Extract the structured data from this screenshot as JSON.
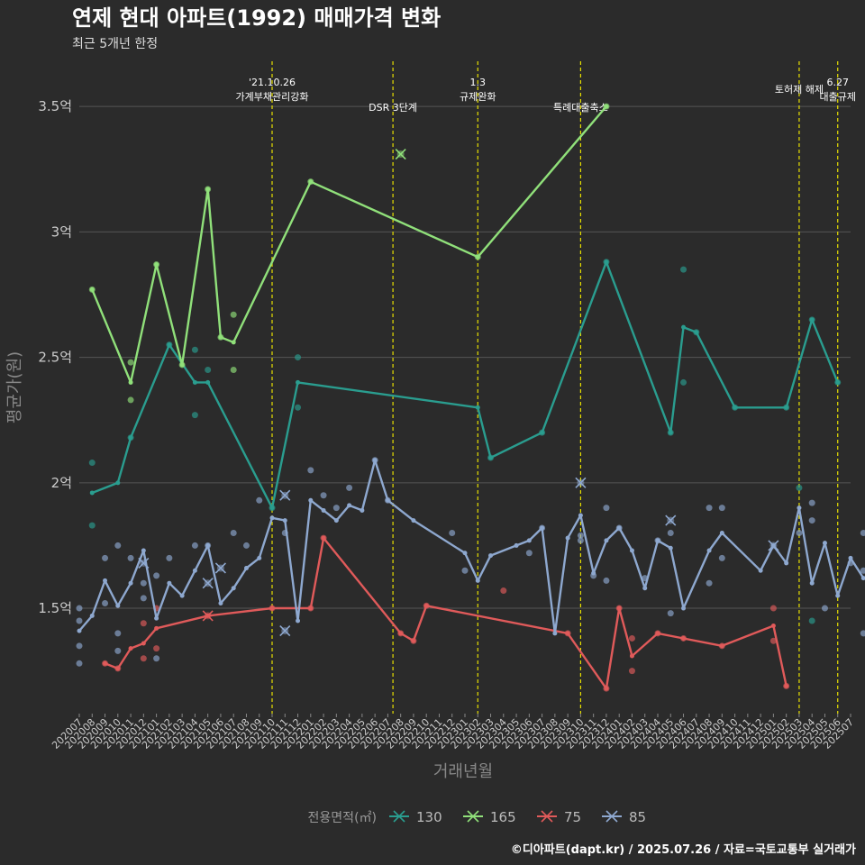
{
  "chart_data": {
    "type": "line",
    "title": "연제 현대 아파트(1992) 매매가격 변화",
    "subtitle": "최근 5개년 한정",
    "xlabel": "거래년월",
    "ylabel": "평균가(원)",
    "caption": "©디아파트(dapt.kr) / 2025.07.26 / 자료=국토교통부 실거래가",
    "y_ticks": [
      {
        "value": 1.5,
        "label": "1.5억"
      },
      {
        "value": 2.0,
        "label": "2억"
      },
      {
        "value": 2.5,
        "label": "2.5억"
      },
      {
        "value": 3.0,
        "label": "3억"
      },
      {
        "value": 3.5,
        "label": "3.5억"
      }
    ],
    "ylim": [
      1.08,
      3.68
    ],
    "categories": [
      "202007",
      "202008",
      "202009",
      "202010",
      "202011",
      "202012",
      "202101",
      "202102",
      "202103",
      "202104",
      "202105",
      "202106",
      "202107",
      "202108",
      "202109",
      "202110",
      "202111",
      "202112",
      "202201",
      "202202",
      "202203",
      "202204",
      "202205",
      "202206",
      "202207",
      "202208",
      "202209",
      "202210",
      "202211",
      "202212",
      "202301",
      "202302",
      "202303",
      "202304",
      "202305",
      "202306",
      "202307",
      "202308",
      "202309",
      "202310",
      "202311",
      "202312",
      "202401",
      "202402",
      "202403",
      "202404",
      "202405",
      "202406",
      "202407",
      "202408",
      "202409",
      "202410",
      "202411",
      "202412",
      "202501",
      "202502",
      "202503",
      "202504",
      "202505",
      "202506",
      "202507"
    ],
    "annotations": [
      {
        "x": 7.5,
        "lines": [
          "'21.10.26",
          "가계부채관리강화"
        ]
      },
      {
        "x": 12.2,
        "lines": [
          "DSR 3단계"
        ]
      },
      {
        "x": 15.5,
        "lines": [
          "1.3",
          "규제완화"
        ]
      },
      {
        "x": 19.5,
        "lines": [
          "특례대출축소"
        ]
      },
      {
        "x": 28.0,
        "lines": [
          "토허제 해제"
        ]
      },
      {
        "x": 29.5,
        "lines": [
          "6.27",
          "대출규제"
        ]
      }
    ],
    "legend": {
      "title": "전용면적(㎡)",
      "position": "bottom",
      "items": [
        {
          "name": "130",
          "color": "#2a9d8f"
        },
        {
          "name": "165",
          "color": "#90e07a"
        },
        {
          "name": "75",
          "color": "#e05a5a"
        },
        {
          "name": "85",
          "color": "#8ea8cf"
        }
      ]
    },
    "series": [
      {
        "name": "130",
        "color": "#2a9d8f",
        "line": [
          [
            0.5,
            1.96
          ],
          [
            1.5,
            2.0
          ],
          [
            2.0,
            2.18
          ],
          [
            3.5,
            2.55
          ],
          [
            4.5,
            2.4
          ],
          [
            5.0,
            2.4
          ],
          [
            7.5,
            1.9
          ],
          [
            8.5,
            2.4
          ],
          [
            15.5,
            2.3
          ],
          [
            16.0,
            2.1
          ],
          [
            18.0,
            2.2
          ],
          [
            20.5,
            2.88
          ],
          [
            23.0,
            2.2
          ],
          [
            23.5,
            2.62
          ],
          [
            24.0,
            2.6
          ],
          [
            25.5,
            2.3
          ],
          [
            27.5,
            2.3
          ],
          [
            28.5,
            2.65
          ],
          [
            29.5,
            2.4
          ]
        ],
        "points": [
          [
            0.5,
            2.08
          ],
          [
            0.5,
            1.83
          ],
          [
            2.0,
            2.18
          ],
          [
            3.5,
            2.55
          ],
          [
            4.5,
            2.53
          ],
          [
            4.5,
            2.27
          ],
          [
            5.0,
            2.45
          ],
          [
            7.5,
            1.9
          ],
          [
            8.5,
            2.5
          ],
          [
            8.5,
            2.3
          ],
          [
            16.0,
            2.1
          ],
          [
            18.0,
            2.2
          ],
          [
            20.5,
            2.88
          ],
          [
            23.0,
            2.2
          ],
          [
            23.5,
            2.4
          ],
          [
            23.5,
            2.85
          ],
          [
            24.0,
            2.6
          ],
          [
            25.5,
            2.3
          ],
          [
            27.5,
            2.3
          ],
          [
            28.0,
            1.98
          ],
          [
            28.5,
            2.65
          ],
          [
            28.5,
            1.45
          ],
          [
            29.5,
            2.4
          ]
        ],
        "crosses": []
      },
      {
        "name": "165",
        "color": "#90e07a",
        "line": [
          [
            0.5,
            2.77
          ],
          [
            2.0,
            2.4
          ],
          [
            3.0,
            2.87
          ],
          [
            4.0,
            2.47
          ],
          [
            5.0,
            3.17
          ],
          [
            5.5,
            2.58
          ],
          [
            6.0,
            2.56
          ],
          [
            9.0,
            3.2
          ],
          [
            15.5,
            2.9
          ],
          [
            20.5,
            3.5
          ]
        ],
        "points": [
          [
            0.5,
            2.77
          ],
          [
            2.0,
            2.48
          ],
          [
            2.0,
            2.33
          ],
          [
            3.0,
            2.87
          ],
          [
            4.0,
            2.47
          ],
          [
            5.0,
            3.17
          ],
          [
            5.5,
            2.58
          ],
          [
            6.0,
            2.45
          ],
          [
            6.0,
            2.67
          ],
          [
            9.0,
            3.2
          ],
          [
            15.5,
            2.9
          ],
          [
            20.5,
            3.5
          ]
        ],
        "crosses": [
          [
            12.5,
            3.31
          ]
        ]
      },
      {
        "name": "75",
        "color": "#e05a5a",
        "line": [
          [
            1.0,
            1.28
          ],
          [
            1.5,
            1.26
          ],
          [
            2.0,
            1.34
          ],
          [
            2.5,
            1.36
          ],
          [
            3.0,
            1.42
          ],
          [
            5.0,
            1.47
          ],
          [
            7.5,
            1.5
          ],
          [
            9.0,
            1.5
          ],
          [
            9.5,
            1.78
          ],
          [
            12.5,
            1.4
          ],
          [
            13.0,
            1.37
          ],
          [
            13.5,
            1.51
          ],
          [
            19.0,
            1.4
          ],
          [
            20.5,
            1.18
          ],
          [
            21.0,
            1.5
          ],
          [
            21.5,
            1.31
          ],
          [
            22.5,
            1.4
          ],
          [
            23.5,
            1.38
          ],
          [
            25.0,
            1.35
          ],
          [
            27.0,
            1.43
          ],
          [
            27.5,
            1.19
          ]
        ],
        "points": [
          [
            1.0,
            1.28
          ],
          [
            1.5,
            1.26
          ],
          [
            2.5,
            1.44
          ],
          [
            2.5,
            1.3
          ],
          [
            3.0,
            1.5
          ],
          [
            3.0,
            1.34
          ],
          [
            7.5,
            1.5
          ],
          [
            9.0,
            1.5
          ],
          [
            9.5,
            1.78
          ],
          [
            12.5,
            1.4
          ],
          [
            13.0,
            1.37
          ],
          [
            13.5,
            1.51
          ],
          [
            16.5,
            1.57
          ],
          [
            19.0,
            1.4
          ],
          [
            20.5,
            1.18
          ],
          [
            21.0,
            1.5
          ],
          [
            21.5,
            1.38
          ],
          [
            21.5,
            1.25
          ],
          [
            22.5,
            1.4
          ],
          [
            23.5,
            1.38
          ],
          [
            25.0,
            1.35
          ],
          [
            27.0,
            1.5
          ],
          [
            27.0,
            1.37
          ],
          [
            27.5,
            1.19
          ]
        ],
        "crosses": [
          [
            5.0,
            1.47
          ]
        ]
      },
      {
        "name": "85",
        "color": "#8ea8cf",
        "line": [
          [
            0.0,
            1.41
          ],
          [
            0.5,
            1.47
          ],
          [
            1.0,
            1.61
          ],
          [
            1.5,
            1.51
          ],
          [
            2.0,
            1.6
          ],
          [
            2.5,
            1.73
          ],
          [
            3.0,
            1.46
          ],
          [
            3.5,
            1.6
          ],
          [
            4.0,
            1.55
          ],
          [
            4.5,
            1.65
          ],
          [
            5.0,
            1.75
          ],
          [
            5.5,
            1.52
          ],
          [
            6.0,
            1.58
          ],
          [
            6.5,
            1.66
          ],
          [
            7.0,
            1.7
          ],
          [
            7.5,
            1.86
          ],
          [
            8.0,
            1.85
          ],
          [
            8.5,
            1.45
          ],
          [
            9.0,
            1.93
          ],
          [
            9.5,
            1.89
          ],
          [
            10.0,
            1.85
          ],
          [
            10.5,
            1.91
          ],
          [
            11.0,
            1.89
          ],
          [
            11.5,
            2.09
          ],
          [
            12.0,
            1.93
          ],
          [
            13.0,
            1.85
          ],
          [
            15.0,
            1.72
          ],
          [
            15.5,
            1.61
          ],
          [
            16.0,
            1.71
          ],
          [
            17.0,
            1.75
          ],
          [
            17.5,
            1.77
          ],
          [
            18.0,
            1.82
          ],
          [
            18.5,
            1.4
          ],
          [
            19.0,
            1.78
          ],
          [
            19.5,
            1.87
          ],
          [
            20.0,
            1.64
          ],
          [
            20.5,
            1.77
          ],
          [
            21.0,
            1.82
          ],
          [
            21.5,
            1.73
          ],
          [
            22.0,
            1.58
          ],
          [
            22.5,
            1.77
          ],
          [
            23.0,
            1.74
          ],
          [
            23.5,
            1.5
          ],
          [
            24.5,
            1.73
          ],
          [
            25.0,
            1.8
          ],
          [
            26.5,
            1.65
          ],
          [
            27.0,
            1.75
          ],
          [
            27.5,
            1.68
          ],
          [
            28.0,
            1.9
          ],
          [
            28.5,
            1.6
          ],
          [
            29.0,
            1.76
          ],
          [
            29.5,
            1.55
          ],
          [
            30.0,
            1.7
          ],
          [
            30.5,
            1.62
          ]
        ],
        "points": [
          [
            0.0,
            1.5
          ],
          [
            0.0,
            1.45
          ],
          [
            0.0,
            1.35
          ],
          [
            0.0,
            1.28
          ],
          [
            1.0,
            1.7
          ],
          [
            1.0,
            1.52
          ],
          [
            1.5,
            1.75
          ],
          [
            1.5,
            1.4
          ],
          [
            1.5,
            1.33
          ],
          [
            2.0,
            1.7
          ],
          [
            2.5,
            1.6
          ],
          [
            2.5,
            1.54
          ],
          [
            3.0,
            1.63
          ],
          [
            3.0,
            1.3
          ],
          [
            3.5,
            1.7
          ],
          [
            4.5,
            1.75
          ],
          [
            5.0,
            1.75
          ],
          [
            6.0,
            1.8
          ],
          [
            6.5,
            1.75
          ],
          [
            7.0,
            1.93
          ],
          [
            8.0,
            1.8
          ],
          [
            9.0,
            2.05
          ],
          [
            9.5,
            1.95
          ],
          [
            10.0,
            1.9
          ],
          [
            10.5,
            1.98
          ],
          [
            11.5,
            2.09
          ],
          [
            12.0,
            1.93
          ],
          [
            14.5,
            1.8
          ],
          [
            15.0,
            1.65
          ],
          [
            17.5,
            1.72
          ],
          [
            18.0,
            1.82
          ],
          [
            19.5,
            1.79
          ],
          [
            19.5,
            1.77
          ],
          [
            20.0,
            1.63
          ],
          [
            20.5,
            1.9
          ],
          [
            20.5,
            1.61
          ],
          [
            21.0,
            1.82
          ],
          [
            22.0,
            1.62
          ],
          [
            22.5,
            1.77
          ],
          [
            23.0,
            1.8
          ],
          [
            23.0,
            1.48
          ],
          [
            24.5,
            1.9
          ],
          [
            24.5,
            1.6
          ],
          [
            25.0,
            1.9
          ],
          [
            25.0,
            1.7
          ],
          [
            28.0,
            1.8
          ],
          [
            28.5,
            1.92
          ],
          [
            28.5,
            1.85
          ],
          [
            29.0,
            1.5
          ],
          [
            30.0,
            1.68
          ],
          [
            30.5,
            1.8
          ],
          [
            30.5,
            1.65
          ],
          [
            30.5,
            1.4
          ]
        ],
        "crosses": [
          [
            2.5,
            1.68
          ],
          [
            5.0,
            1.6
          ],
          [
            5.5,
            1.66
          ],
          [
            8.0,
            1.95
          ],
          [
            8.0,
            1.41
          ],
          [
            19.5,
            2.0
          ],
          [
            23.0,
            1.85
          ],
          [
            27.0,
            1.75
          ]
        ]
      }
    ]
  }
}
